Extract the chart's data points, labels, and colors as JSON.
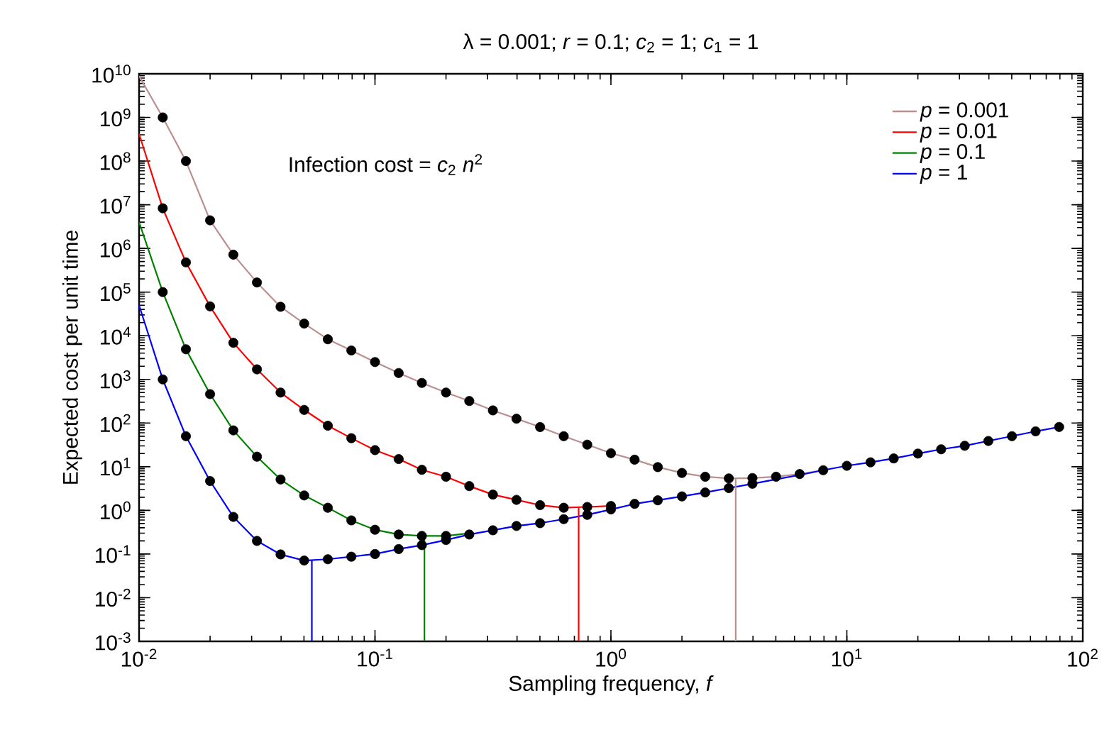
{
  "chart_data": {
    "type": "line",
    "title": "λ = 0.001;  *r* = 0.1;  *c*$_{2}$ = 1;  *c*$_{1}$ = 1",
    "xlabel": "Sampling frequency, *f*",
    "ylabel": "Expected cost per unit time",
    "annotations": [
      "Infection cost = *c*$_{2}$ *n*$^{2}$"
    ],
    "log": "xy",
    "legend": "top right",
    "xlim": [
      0.01,
      100
    ],
    "ylim": [
      0.001,
      10000000000
    ],
    "xticks": [
      {
        "value": 0.01,
        "label": "10$^{-2}$"
      },
      {
        "value": 0.1,
        "label": "10$^{-1}$"
      },
      {
        "value": 1,
        "label": "10$^{0}$"
      },
      {
        "value": 10,
        "label": "10$^{1}$"
      },
      {
        "value": 100,
        "label": "10$^{2}$"
      }
    ],
    "yticks": [
      {
        "value": 0.001,
        "label": "10$^{-3}$"
      },
      {
        "value": 0.01,
        "label": "10$^{-2}$"
      },
      {
        "value": 0.1,
        "label": "10$^{-1}$"
      },
      {
        "value": 1,
        "label": "10$^{0}$"
      },
      {
        "value": 10,
        "label": "10$^{1}$"
      },
      {
        "value": 100,
        "label": "10$^{2}$"
      },
      {
        "value": 1000,
        "label": "10$^{3}$"
      },
      {
        "value": 10000,
        "label": "10$^{4}$"
      },
      {
        "value": 100000,
        "label": "10$^{5}$"
      },
      {
        "value": 1000000,
        "label": "10$^{6}$"
      },
      {
        "value": 10000000,
        "label": "10$^{7}$"
      },
      {
        "value": 100000000,
        "label": "10$^{8}$"
      },
      {
        "value": 1000000000,
        "label": "10$^{9}$"
      },
      {
        "value": 10000000000,
        "label": "10$^{10}$"
      }
    ],
    "series": [
      {
        "name": "*p* = 0.001",
        "type": "line",
        "color": "#bc8f8f",
        "x": [
          0.01,
          0.0126,
          0.0158,
          0.02,
          0.0251,
          0.0316,
          0.0398,
          0.0501,
          0.0631,
          0.0794,
          0.1,
          0.126,
          0.158,
          0.2,
          0.251,
          0.316,
          0.398,
          0.501,
          0.631,
          0.794,
          1,
          1.26,
          1.58,
          2,
          2.51,
          3.16,
          3.98,
          5.01,
          6.31,
          7.94
        ],
        "values": [
          8900000000,
          1000000000,
          100000000,
          4400000,
          720000,
          166000,
          46000,
          19000,
          8300,
          4600,
          2500,
          1400,
          830,
          500,
          320,
          195,
          126,
          81,
          50,
          32,
          20.4,
          14.5,
          9.8,
          7.2,
          5.9,
          5.4,
          5.5,
          5.9,
          6.8,
          8.32
        ]
      },
      {
        "name": "*p* = 0.01",
        "type": "line",
        "color": "#ff0000",
        "x": [
          0.01,
          0.0126,
          0.0158,
          0.02,
          0.0251,
          0.0316,
          0.0398,
          0.0501,
          0.0631,
          0.0794,
          0.1,
          0.126,
          0.158,
          0.2,
          0.251,
          0.316,
          0.398,
          0.501,
          0.631,
          0.794,
          1
        ],
        "values": [
          420000000,
          8300000,
          480000,
          47000,
          6900,
          1700,
          500,
          200,
          87,
          45,
          24,
          15,
          8.5,
          5.9,
          3.6,
          2.3,
          1.74,
          1.32,
          1.15,
          1.2,
          1.26
        ]
      },
      {
        "name": "*p* = 0.1",
        "type": "line",
        "color": "#008000",
        "x": [
          0.01,
          0.0126,
          0.0158,
          0.02,
          0.0251,
          0.0316,
          0.0398,
          0.0501,
          0.0631,
          0.0794,
          0.1,
          0.126,
          0.158,
          0.2,
          0.251
        ],
        "values": [
          4000000,
          100000,
          4900,
          460,
          68,
          17,
          5.1,
          2.2,
          1.15,
          0.59,
          0.36,
          0.28,
          0.26,
          0.26,
          0.3
        ]
      },
      {
        "name": "*p* = 1",
        "type": "line",
        "color": "#0000ff",
        "x": [
          0.01,
          0.0126,
          0.0158,
          0.02,
          0.0251,
          0.0316,
          0.0398,
          0.0501,
          0.0631,
          0.0794,
          0.1,
          0.126,
          0.158,
          0.2,
          0.251,
          0.316,
          0.398,
          0.501,
          0.631,
          0.794,
          1,
          1.26,
          1.58,
          2,
          2.51,
          3.16,
          3.98,
          5.01,
          6.31,
          7.94,
          10,
          12.6,
          15.8,
          20,
          25.1,
          31.6,
          39.8,
          50.1,
          63.1,
          79.4
        ],
        "values": [
          50000,
          1000,
          50,
          4.7,
          0.71,
          0.2,
          0.098,
          0.071,
          0.076,
          0.087,
          0.1,
          0.13,
          0.16,
          0.21,
          0.28,
          0.35,
          0.44,
          0.51,
          0.63,
          0.79,
          1.05,
          1.41,
          1.7,
          2.09,
          2.57,
          3.24,
          4.07,
          5.13,
          6.46,
          8.32,
          10.5,
          12.6,
          15.5,
          20.0,
          25.1,
          30.2,
          38.9,
          50.1,
          64.6,
          81.3
        ]
      },
      {
        "color": "#bc8f8f",
        "x": [
          3.38,
          3.38
        ],
        "values": [
          0.001,
          5.4
        ]
      },
      {
        "color": "#ff0000",
        "x": [
          0.73,
          0.73
        ],
        "values": [
          0.001,
          1.15
        ]
      },
      {
        "color": "#008000",
        "x": [
          0.162,
          0.162
        ],
        "values": [
          0.001,
          0.26
        ]
      },
      {
        "color": "#0000ff",
        "x": [
          0.054,
          0.054
        ],
        "values": [
          0.001,
          0.071
        ]
      },
      {
        "type": "scatter",
        "color": "#000000",
        "x": [
          0.0126,
          0.0158,
          0.02,
          0.0251,
          0.0316,
          0.0398,
          0.0501,
          0.0631,
          0.0794,
          0.1,
          0.126,
          0.158,
          0.2,
          0.251,
          0.316,
          0.398,
          0.501,
          0.631,
          0.794,
          1,
          1.26,
          1.58,
          2,
          2.51,
          3.16,
          3.98,
          5.01,
          6.31
        ],
        "values": [
          1000000000,
          100000000,
          4400000,
          720000,
          166000,
          46000,
          19000,
          8300,
          4600,
          2500,
          1400,
          830,
          500,
          320,
          195,
          126,
          81,
          50,
          32,
          20.4,
          14.5,
          9.8,
          7.2,
          5.9,
          5.4,
          5.5,
          5.9,
          6.8
        ]
      },
      {
        "type": "scatter",
        "color": "#000000",
        "x": [
          0.0126,
          0.0158,
          0.02,
          0.0251,
          0.0316,
          0.0398,
          0.0501,
          0.0631,
          0.0794,
          0.1,
          0.126,
          0.158,
          0.2,
          0.251,
          0.316,
          0.398,
          0.501,
          0.631,
          0.794,
          1
        ],
        "values": [
          8300000,
          480000,
          47000,
          6900,
          1700,
          500,
          200,
          87,
          45,
          24,
          15,
          8.5,
          5.9,
          3.6,
          2.3,
          1.74,
          1.32,
          1.15,
          1.2,
          1.26
        ]
      },
      {
        "type": "scatter",
        "color": "#000000",
        "x": [
          0.0126,
          0.0158,
          0.02,
          0.0251,
          0.0316,
          0.0398,
          0.0501,
          0.0631,
          0.0794,
          0.1,
          0.126,
          0.158,
          0.2
        ],
        "values": [
          100000,
          4900,
          460,
          68,
          17,
          5.1,
          2.2,
          1.15,
          0.59,
          0.36,
          0.28,
          0.26,
          0.26
        ]
      },
      {
        "type": "scatter",
        "color": "#000000",
        "x": [
          0.0126,
          0.0158,
          0.02,
          0.0251,
          0.0316,
          0.0398,
          0.0501,
          0.0631,
          0.0794,
          0.1,
          0.126,
          0.158,
          0.2,
          0.251,
          0.316,
          0.398,
          0.501,
          0.631,
          0.794,
          1,
          1.26,
          1.58,
          2,
          2.51,
          3.16,
          3.98,
          5.01,
          6.31,
          7.94,
          10,
          12.6,
          15.8,
          20,
          25.1,
          31.6,
          39.8,
          50.1,
          63.1,
          79.4
        ],
        "values": [
          1000,
          50,
          4.7,
          0.71,
          0.2,
          0.098,
          0.071,
          0.076,
          0.087,
          0.1,
          0.13,
          0.16,
          0.21,
          0.28,
          0.35,
          0.44,
          0.51,
          0.63,
          0.79,
          1.05,
          1.41,
          1.7,
          2.09,
          2.57,
          3.24,
          4.07,
          null,
          null,
          8.32,
          10.5,
          12.6,
          15.5,
          20.0,
          25.1,
          30.2,
          38.9,
          50.1,
          64.6,
          81.3
        ]
      }
    ]
  }
}
